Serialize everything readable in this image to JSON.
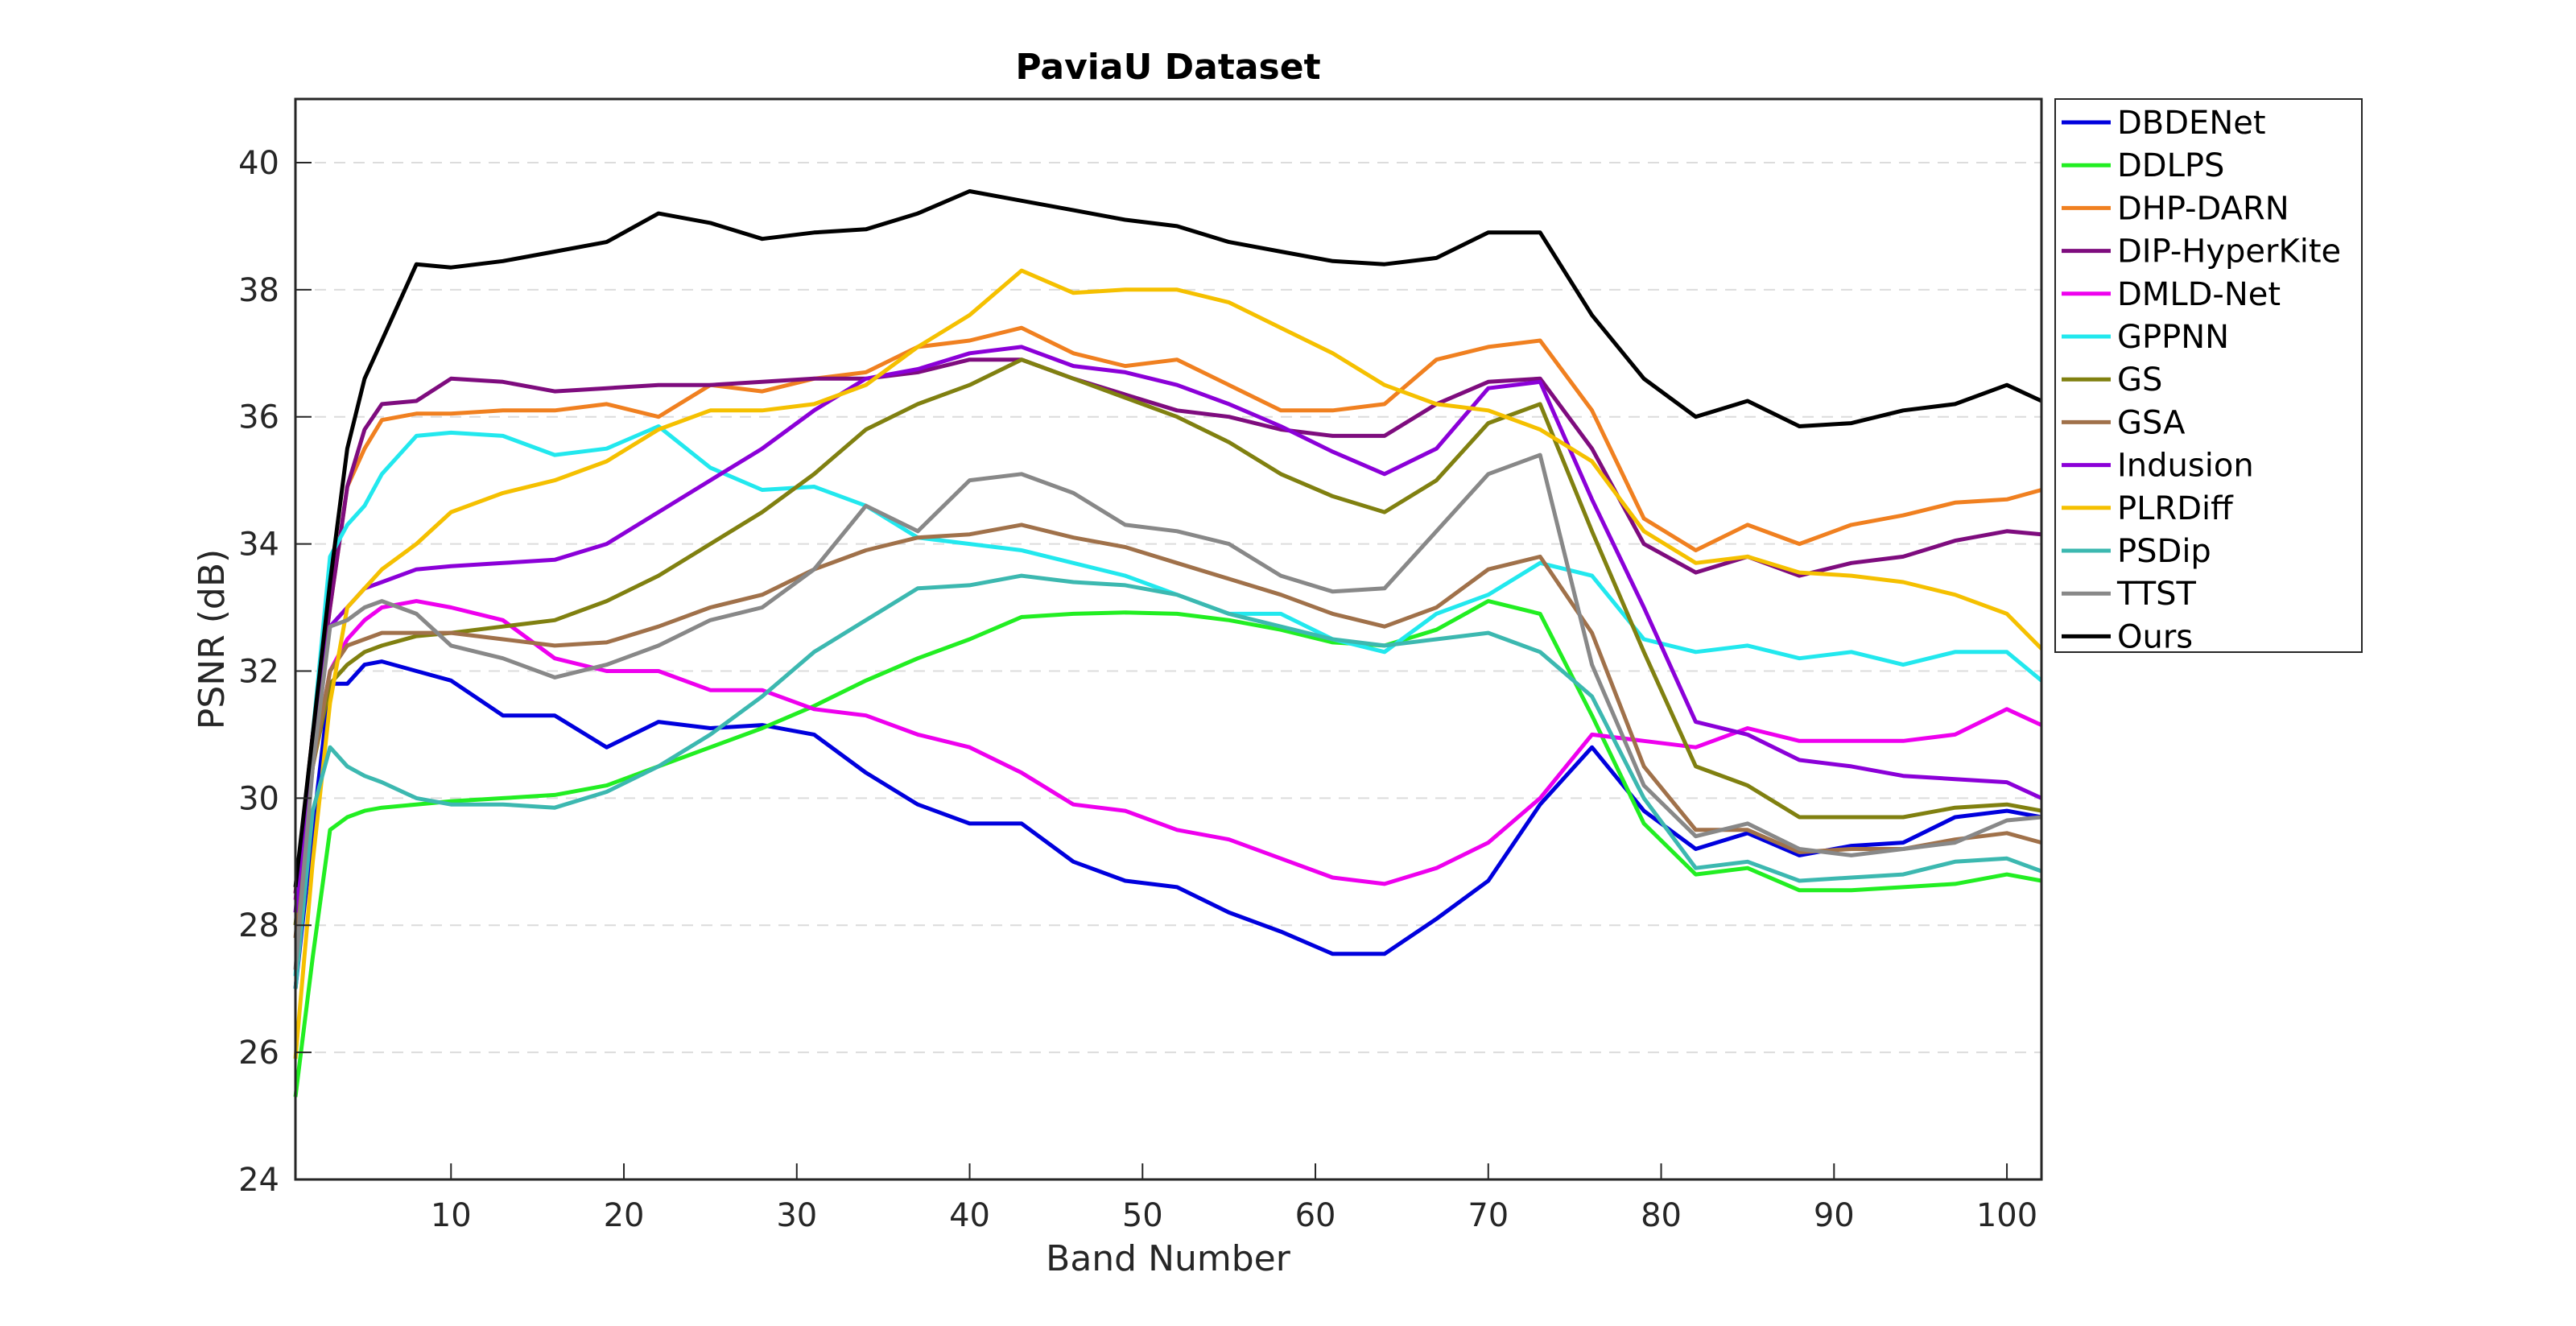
{
  "chart_data": {
    "type": "line",
    "title": "PaviaU Dataset",
    "xlabel": "Band Number",
    "ylabel": "PSNR (dB)",
    "xlim": [
      1,
      102
    ],
    "ylim": [
      24,
      41
    ],
    "xticks": [
      10,
      20,
      30,
      40,
      50,
      60,
      70,
      80,
      90,
      100
    ],
    "yticks": [
      24,
      26,
      28,
      30,
      32,
      34,
      36,
      38,
      40
    ],
    "grid": "horizontal dashed",
    "legend_position": "outside-right",
    "x": [
      1,
      2,
      3,
      4,
      5,
      6,
      8,
      10,
      13,
      16,
      19,
      22,
      25,
      28,
      31,
      34,
      37,
      40,
      43,
      46,
      49,
      52,
      55,
      58,
      61,
      64,
      67,
      70,
      73,
      76,
      79,
      82,
      85,
      88,
      91,
      94,
      97,
      100,
      102
    ],
    "series": [
      {
        "name": "DBDENet",
        "color": "#0000dd",
        "values": [
          27.0,
          29.5,
          31.8,
          31.8,
          32.1,
          32.15,
          32.0,
          31.85,
          31.3,
          31.3,
          30.8,
          31.2,
          31.1,
          31.15,
          31.0,
          30.4,
          29.9,
          29.6,
          29.6,
          29.0,
          28.7,
          28.6,
          28.2,
          27.9,
          27.55,
          27.55,
          28.1,
          28.7,
          29.9,
          30.8,
          29.8,
          29.2,
          29.45,
          29.1,
          29.25,
          29.3,
          29.7,
          29.8,
          29.7
        ]
      },
      {
        "name": "DDLPS",
        "color": "#22ee22",
        "values": [
          25.3,
          27.5,
          29.5,
          29.7,
          29.8,
          29.85,
          29.9,
          29.95,
          30.0,
          30.05,
          30.2,
          30.5,
          30.8,
          31.1,
          31.45,
          31.85,
          32.2,
          32.5,
          32.85,
          32.9,
          32.92,
          32.9,
          32.8,
          32.65,
          32.45,
          32.4,
          32.65,
          33.1,
          32.9,
          31.3,
          29.6,
          28.8,
          28.9,
          28.55,
          28.55,
          28.6,
          28.65,
          28.8,
          28.7
        ]
      },
      {
        "name": "DHP-DARN",
        "color": "#f08020",
        "values": [
          28.5,
          31.0,
          33.0,
          34.9,
          35.5,
          35.95,
          36.05,
          36.05,
          36.1,
          36.1,
          36.2,
          36.0,
          36.5,
          36.4,
          36.6,
          36.7,
          37.1,
          37.2,
          37.4,
          37.0,
          36.8,
          36.9,
          36.5,
          36.1,
          36.1,
          36.2,
          36.9,
          37.1,
          37.2,
          36.1,
          34.4,
          33.9,
          34.3,
          34.0,
          34.3,
          34.45,
          34.65,
          34.7,
          34.85
        ]
      },
      {
        "name": "DIP-HyperKite",
        "color": "#7e0c7e",
        "values": [
          28.5,
          31.0,
          33.0,
          34.9,
          35.8,
          36.2,
          36.25,
          36.6,
          36.55,
          36.4,
          36.45,
          36.5,
          36.5,
          36.55,
          36.6,
          36.6,
          36.7,
          36.9,
          36.9,
          36.6,
          36.35,
          36.1,
          36.0,
          35.8,
          35.7,
          35.7,
          36.2,
          36.55,
          36.6,
          35.5,
          34.0,
          33.55,
          33.8,
          33.5,
          33.7,
          33.8,
          34.05,
          34.2,
          34.15
        ]
      },
      {
        "name": "DMLD-Net",
        "color": "#ee00ee",
        "values": [
          28.4,
          30.5,
          32.0,
          32.5,
          32.8,
          33.0,
          33.1,
          33.0,
          32.8,
          32.2,
          32.0,
          32.0,
          31.7,
          31.7,
          31.4,
          31.3,
          31.0,
          30.8,
          30.4,
          29.9,
          29.8,
          29.5,
          29.35,
          29.05,
          28.75,
          28.65,
          28.9,
          29.3,
          30.0,
          31.0,
          30.9,
          30.8,
          31.1,
          30.9,
          30.9,
          30.9,
          31.0,
          31.4,
          31.15
        ]
      },
      {
        "name": "GPPNN",
        "color": "#22e8ee",
        "values": [
          27.2,
          31.0,
          33.8,
          34.3,
          34.6,
          35.1,
          35.7,
          35.75,
          35.7,
          35.4,
          35.5,
          35.85,
          35.2,
          34.85,
          34.9,
          34.6,
          34.1,
          34.0,
          33.9,
          33.7,
          33.5,
          33.2,
          32.9,
          32.9,
          32.5,
          32.3,
          32.9,
          33.2,
          33.7,
          33.5,
          32.5,
          32.3,
          32.4,
          32.2,
          32.3,
          32.1,
          32.3,
          32.3,
          31.85
        ]
      },
      {
        "name": "GS",
        "color": "#808010",
        "values": [
          28.0,
          30.5,
          31.8,
          32.1,
          32.3,
          32.4,
          32.55,
          32.6,
          32.7,
          32.8,
          33.1,
          33.5,
          34.0,
          34.5,
          35.1,
          35.8,
          36.2,
          36.5,
          36.9,
          36.6,
          36.3,
          36.0,
          35.6,
          35.1,
          34.75,
          34.5,
          35.0,
          35.9,
          36.2,
          34.2,
          32.3,
          30.5,
          30.2,
          29.7,
          29.7,
          29.7,
          29.85,
          29.9,
          29.8
        ]
      },
      {
        "name": "GSA",
        "color": "#a0714a",
        "values": [
          27.8,
          30.5,
          32.0,
          32.4,
          32.5,
          32.6,
          32.6,
          32.6,
          32.5,
          32.4,
          32.45,
          32.7,
          33.0,
          33.2,
          33.6,
          33.9,
          34.1,
          34.15,
          34.3,
          34.1,
          33.95,
          33.7,
          33.45,
          33.2,
          32.9,
          32.7,
          33.0,
          33.6,
          33.8,
          32.6,
          30.5,
          29.5,
          29.5,
          29.15,
          29.2,
          29.2,
          29.35,
          29.45,
          29.3
        ]
      },
      {
        "name": "Indusion",
        "color": "#8b00d8",
        "values": [
          28.2,
          31.0,
          32.7,
          33.0,
          33.3,
          33.4,
          33.6,
          33.65,
          33.7,
          33.75,
          34.0,
          34.5,
          35.0,
          35.5,
          36.1,
          36.6,
          36.75,
          37.0,
          37.1,
          36.8,
          36.7,
          36.5,
          36.2,
          35.85,
          35.45,
          35.1,
          35.5,
          36.45,
          36.55,
          34.7,
          33.0,
          31.2,
          31.0,
          30.6,
          30.5,
          30.35,
          30.3,
          30.25,
          30.0
        ]
      },
      {
        "name": "PLRDiff",
        "color": "#f5c000",
        "values": [
          25.9,
          29.0,
          31.5,
          33.0,
          33.3,
          33.6,
          34.0,
          34.5,
          34.8,
          35.0,
          35.3,
          35.8,
          36.1,
          36.1,
          36.2,
          36.5,
          37.1,
          37.6,
          38.3,
          37.95,
          38.0,
          38.0,
          37.8,
          37.4,
          37.0,
          36.5,
          36.2,
          36.1,
          35.8,
          35.3,
          34.2,
          33.7,
          33.8,
          33.55,
          33.5,
          33.4,
          33.2,
          32.9,
          32.35
        ]
      },
      {
        "name": "PSDip",
        "color": "#3cb8b0",
        "values": [
          27.0,
          29.8,
          30.8,
          30.5,
          30.35,
          30.25,
          30.0,
          29.9,
          29.9,
          29.85,
          30.1,
          30.5,
          31.0,
          31.6,
          32.3,
          32.8,
          33.3,
          33.35,
          33.5,
          33.4,
          33.35,
          33.2,
          32.9,
          32.7,
          32.5,
          32.4,
          32.5,
          32.6,
          32.3,
          31.6,
          30.0,
          28.9,
          29.0,
          28.7,
          28.75,
          28.8,
          29.0,
          29.05,
          28.85
        ]
      },
      {
        "name": "TTST",
        "color": "#888888",
        "values": [
          27.3,
          30.5,
          32.7,
          32.8,
          33.0,
          33.1,
          32.9,
          32.4,
          32.2,
          31.9,
          32.1,
          32.4,
          32.8,
          33.0,
          33.6,
          34.6,
          34.2,
          35.0,
          35.1,
          34.8,
          34.3,
          34.2,
          34.0,
          33.5,
          33.25,
          33.3,
          34.2,
          35.1,
          35.4,
          32.1,
          30.2,
          29.4,
          29.6,
          29.2,
          29.1,
          29.2,
          29.3,
          29.65,
          29.7
        ]
      },
      {
        "name": "Ours",
        "color": "#000000",
        "values": [
          28.6,
          31.0,
          33.4,
          35.5,
          36.6,
          37.2,
          38.4,
          38.35,
          38.45,
          38.6,
          38.75,
          39.2,
          39.05,
          38.8,
          38.9,
          38.95,
          39.2,
          39.55,
          39.4,
          39.25,
          39.1,
          39.0,
          38.75,
          38.6,
          38.45,
          38.4,
          38.5,
          38.9,
          38.9,
          37.6,
          36.6,
          36.0,
          36.25,
          35.85,
          35.9,
          36.1,
          36.2,
          36.5,
          36.25
        ]
      }
    ]
  }
}
